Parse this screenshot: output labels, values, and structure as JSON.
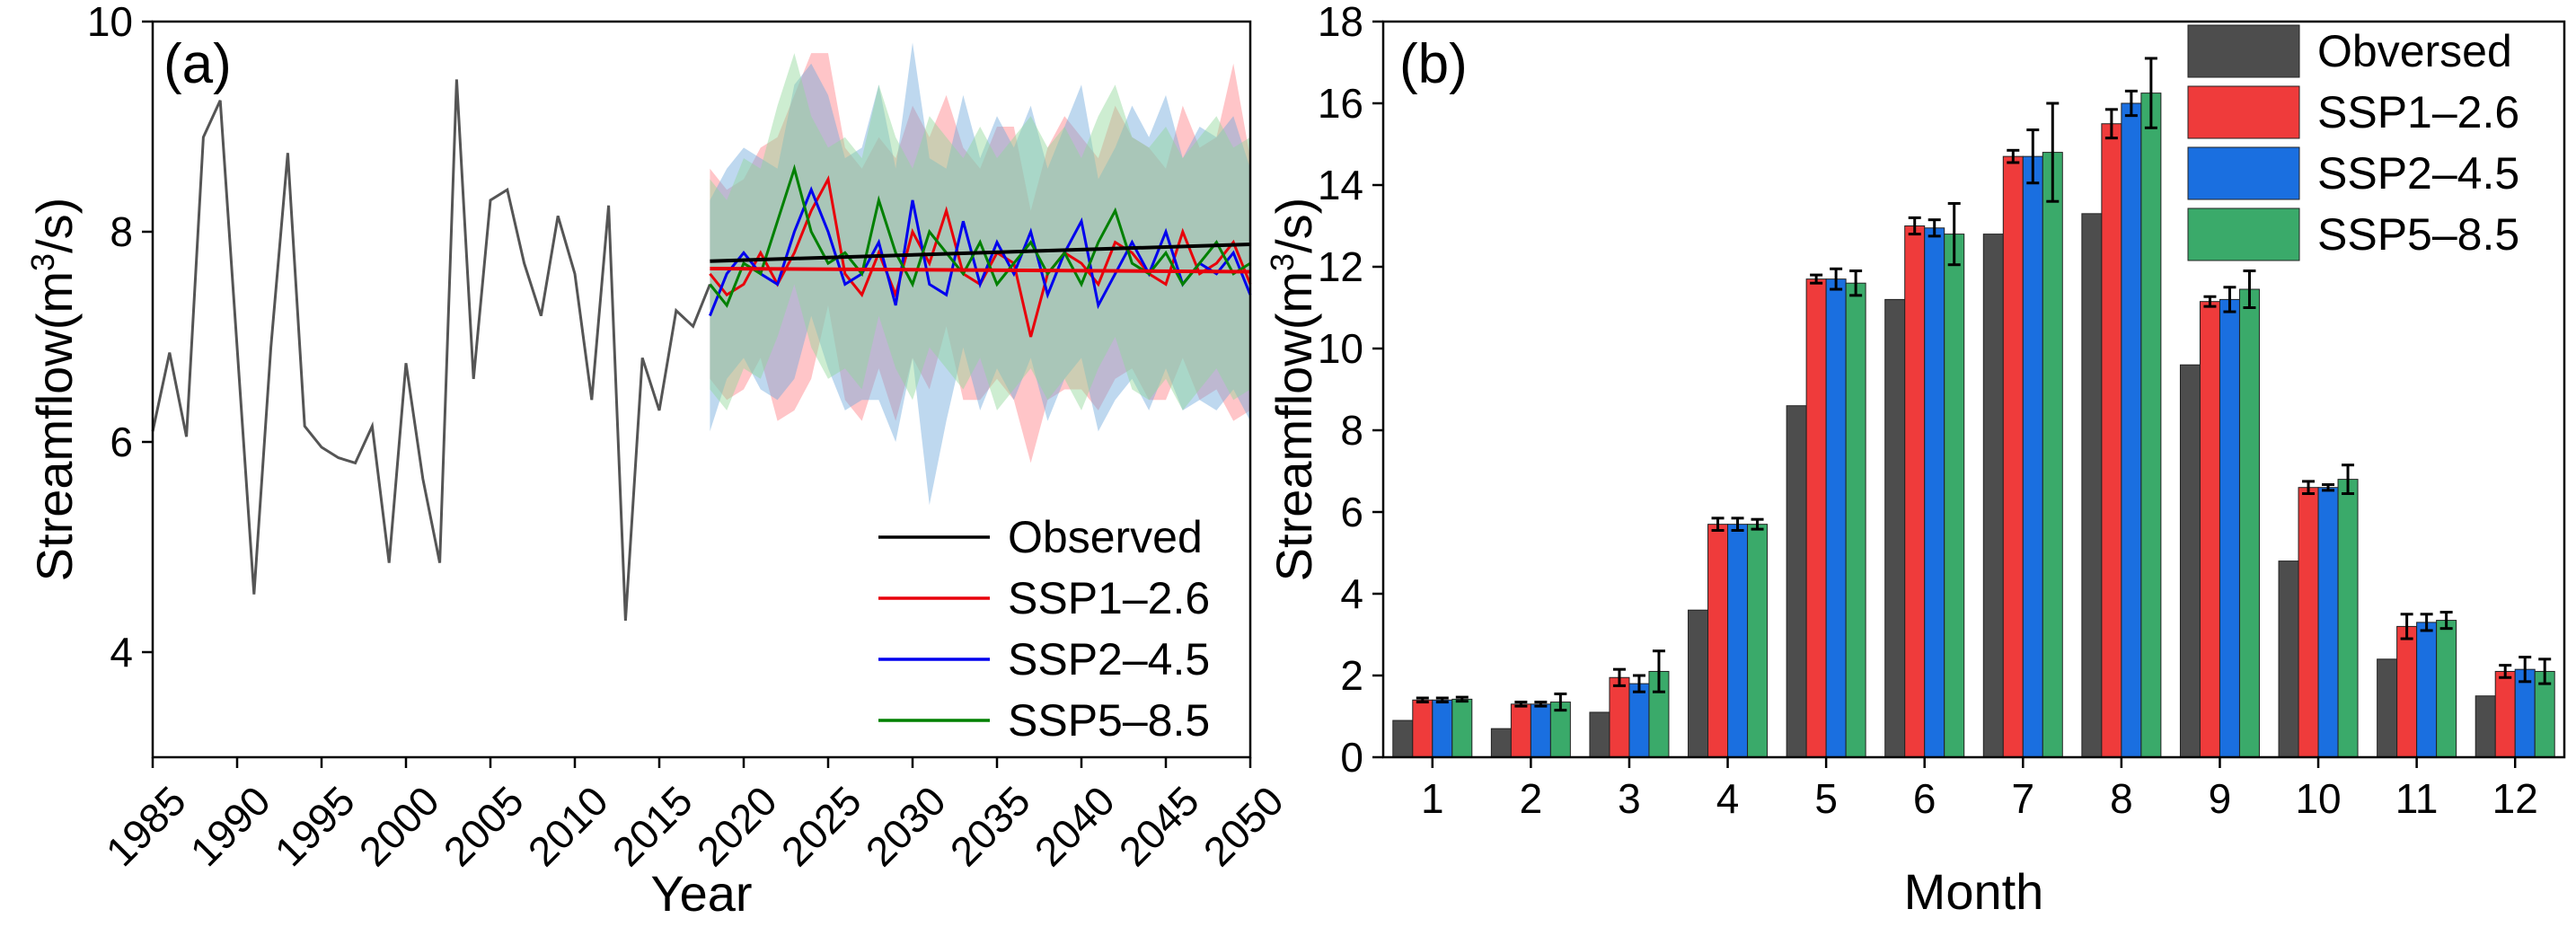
{
  "chart_data": [
    {
      "panel_label": "(a)",
      "type": "line",
      "xlabel": "Year",
      "ylabel": "Streamflow(m³/s)",
      "xlim": [
        1985,
        2050
      ],
      "ylim": [
        3,
        10
      ],
      "xticks": [
        1985,
        1990,
        1995,
        2000,
        2005,
        2010,
        2015,
        2020,
        2025,
        2030,
        2035,
        2040,
        2045,
        2050
      ],
      "yticks": [
        4,
        6,
        8,
        10
      ],
      "legend_position": "lower-right",
      "observed": {
        "name": "Observed",
        "color": "#000000",
        "x": [
          1985,
          1986,
          1987,
          1988,
          1989,
          1990,
          1991,
          1992,
          1993,
          1994,
          1995,
          1996,
          1997,
          1998,
          1999,
          2000,
          2001,
          2002,
          2003,
          2004,
          2005,
          2006,
          2007,
          2008,
          2009,
          2010,
          2011,
          2012,
          2013,
          2014,
          2015,
          2016,
          2017,
          2018
        ],
        "y": [
          6.1,
          6.85,
          6.05,
          8.9,
          9.25,
          6.9,
          4.55,
          6.9,
          8.75,
          6.15,
          5.95,
          5.85,
          5.8,
          6.15,
          4.85,
          6.75,
          5.65,
          4.85,
          9.45,
          6.6,
          8.3,
          8.4,
          7.7,
          7.2,
          8.15,
          7.6,
          6.4,
          8.25,
          4.3,
          6.8,
          6.3,
          7.25,
          7.1,
          7.5
        ],
        "trend": {
          "x": [
            2018,
            2050
          ],
          "y": [
            7.72,
            7.88
          ]
        }
      },
      "series": [
        {
          "name": "SSP1–2.6",
          "color": "#e8000b",
          "band_color": "#ff7f86",
          "x": [
            2018,
            2019,
            2020,
            2021,
            2022,
            2023,
            2024,
            2025,
            2026,
            2027,
            2028,
            2029,
            2030,
            2031,
            2032,
            2033,
            2034,
            2035,
            2036,
            2037,
            2038,
            2039,
            2040,
            2041,
            2042,
            2043,
            2044,
            2045,
            2046,
            2047,
            2048,
            2049,
            2050
          ],
          "y": [
            7.6,
            7.4,
            7.5,
            7.8,
            7.5,
            7.8,
            8.2,
            8.5,
            7.6,
            7.4,
            7.8,
            7.4,
            8.0,
            7.7,
            8.2,
            7.6,
            7.5,
            7.8,
            7.7,
            7.0,
            7.6,
            7.8,
            7.7,
            7.5,
            7.9,
            7.8,
            7.6,
            7.5,
            8.0,
            7.6,
            7.7,
            7.9,
            7.5
          ],
          "upper": [
            8.6,
            8.4,
            8.5,
            8.8,
            8.9,
            9.3,
            9.7,
            9.7,
            8.8,
            8.6,
            8.9,
            8.7,
            9.2,
            8.9,
            9.3,
            8.8,
            8.6,
            9.0,
            9.0,
            8.2,
            8.8,
            9.1,
            8.9,
            8.7,
            9.2,
            8.9,
            8.8,
            8.6,
            9.2,
            8.8,
            8.9,
            9.6,
            8.7
          ],
          "lower": [
            6.6,
            6.4,
            6.5,
            6.8,
            6.2,
            6.3,
            6.6,
            7.3,
            6.4,
            6.2,
            6.7,
            6.2,
            6.8,
            6.5,
            7.1,
            6.4,
            6.4,
            6.6,
            6.4,
            5.8,
            6.4,
            6.5,
            6.5,
            6.3,
            6.6,
            6.7,
            6.4,
            6.4,
            6.8,
            6.4,
            6.5,
            6.2,
            6.3
          ],
          "trend": {
            "x": [
              2018,
              2050
            ],
            "y": [
              7.65,
              7.62
            ]
          }
        },
        {
          "name": "SSP2–4.5",
          "color": "#0000ee",
          "band_color": "#6fa8dc",
          "x": [
            2018,
            2019,
            2020,
            2021,
            2022,
            2023,
            2024,
            2025,
            2026,
            2027,
            2028,
            2029,
            2030,
            2031,
            2032,
            2033,
            2034,
            2035,
            2036,
            2037,
            2038,
            2039,
            2040,
            2041,
            2042,
            2043,
            2044,
            2045,
            2046,
            2047,
            2048,
            2049,
            2050
          ],
          "y": [
            7.2,
            7.6,
            7.8,
            7.6,
            7.5,
            8.0,
            8.4,
            8.0,
            7.5,
            7.6,
            7.9,
            7.3,
            8.3,
            7.5,
            7.4,
            8.1,
            7.5,
            7.9,
            7.6,
            8.0,
            7.4,
            7.8,
            8.1,
            7.3,
            7.6,
            7.9,
            7.6,
            8.0,
            7.5,
            7.7,
            7.6,
            7.8,
            7.4
          ],
          "upper": [
            8.3,
            8.6,
            8.8,
            8.7,
            8.6,
            9.4,
            9.6,
            9.3,
            8.7,
            8.8,
            9.4,
            8.6,
            9.8,
            8.7,
            8.6,
            9.3,
            8.7,
            9.1,
            8.8,
            9.2,
            8.6,
            9.0,
            9.4,
            8.5,
            8.8,
            9.2,
            8.9,
            9.3,
            8.7,
            9.0,
            8.9,
            9.1,
            8.6
          ],
          "lower": [
            6.1,
            6.6,
            6.8,
            6.5,
            6.4,
            6.6,
            7.2,
            6.7,
            6.3,
            6.4,
            6.4,
            6.0,
            6.8,
            5.4,
            6.2,
            6.9,
            6.3,
            6.7,
            6.4,
            6.8,
            6.2,
            6.6,
            6.8,
            6.1,
            6.4,
            6.6,
            6.3,
            6.7,
            6.3,
            6.4,
            6.3,
            6.5,
            6.2
          ]
        },
        {
          "name": "SSP5–8.5",
          "color": "#008000",
          "band_color": "#90d89a",
          "x": [
            2018,
            2019,
            2020,
            2021,
            2022,
            2023,
            2024,
            2025,
            2026,
            2027,
            2028,
            2029,
            2030,
            2031,
            2032,
            2033,
            2034,
            2035,
            2036,
            2037,
            2038,
            2039,
            2040,
            2041,
            2042,
            2043,
            2044,
            2045,
            2046,
            2047,
            2048,
            2049,
            2050
          ],
          "y": [
            7.5,
            7.3,
            7.7,
            7.6,
            8.1,
            8.6,
            8.0,
            7.7,
            7.8,
            7.6,
            8.3,
            7.8,
            7.5,
            8.0,
            7.8,
            7.6,
            7.9,
            7.5,
            7.7,
            7.9,
            7.6,
            7.8,
            7.5,
            7.9,
            8.2,
            7.7,
            7.6,
            7.8,
            7.5,
            7.7,
            7.9,
            7.6,
            7.7
          ],
          "upper": [
            8.5,
            8.3,
            8.7,
            8.6,
            9.2,
            9.7,
            9.1,
            8.8,
            8.9,
            8.7,
            9.4,
            8.9,
            8.6,
            9.1,
            8.9,
            8.7,
            9.0,
            8.7,
            8.9,
            9.1,
            8.8,
            9.0,
            8.7,
            9.1,
            9.4,
            8.9,
            8.8,
            9.0,
            8.7,
            8.9,
            9.1,
            8.8,
            8.9
          ],
          "lower": [
            6.5,
            6.3,
            6.7,
            6.6,
            7.0,
            7.5,
            6.9,
            6.6,
            6.7,
            6.5,
            7.2,
            6.7,
            6.4,
            6.9,
            6.7,
            6.5,
            6.8,
            6.3,
            6.5,
            6.7,
            6.4,
            6.6,
            6.3,
            6.7,
            7.0,
            6.5,
            6.4,
            6.6,
            6.3,
            6.5,
            6.7,
            6.4,
            6.5
          ]
        }
      ]
    },
    {
      "panel_label": "(b)",
      "type": "bar",
      "xlabel": "Month",
      "ylabel": "Streamflow(m³/s)",
      "ylim": [
        0,
        18
      ],
      "yticks": [
        0,
        2,
        4,
        6,
        8,
        10,
        12,
        14,
        16,
        18
      ],
      "categories": [
        "1",
        "2",
        "3",
        "4",
        "5",
        "6",
        "7",
        "8",
        "9",
        "10",
        "11",
        "12"
      ],
      "legend_position": "top-right",
      "series": [
        {
          "name": "Obversed",
          "color": "#4d4d4d",
          "values": [
            0.9,
            0.7,
            1.1,
            3.6,
            8.6,
            11.2,
            12.8,
            13.3,
            9.6,
            4.8,
            2.4,
            1.5
          ],
          "errors": [
            0,
            0,
            0,
            0,
            0,
            0,
            0,
            0,
            0,
            0,
            0,
            0
          ]
        },
        {
          "name": "SSP1–2.6",
          "color": "#ef3b3b",
          "values": [
            1.4,
            1.3,
            1.95,
            5.7,
            11.7,
            13.0,
            14.7,
            15.5,
            11.15,
            6.6,
            3.2,
            2.1
          ],
          "errors": [
            0.05,
            0.05,
            0.2,
            0.15,
            0.1,
            0.2,
            0.15,
            0.35,
            0.12,
            0.15,
            0.3,
            0.15
          ]
        },
        {
          "name": "SSP2–4.5",
          "color": "#1a6fe0",
          "values": [
            1.4,
            1.3,
            1.8,
            5.7,
            11.7,
            12.95,
            14.7,
            16.0,
            11.2,
            6.6,
            3.3,
            2.15
          ],
          "errors": [
            0.05,
            0.05,
            0.2,
            0.15,
            0.25,
            0.2,
            0.65,
            0.3,
            0.3,
            0.07,
            0.2,
            0.3
          ]
        },
        {
          "name": "SSP5–8.5",
          "color": "#3aaa6a",
          "values": [
            1.42,
            1.35,
            2.1,
            5.7,
            11.6,
            12.8,
            14.8,
            16.25,
            11.45,
            6.8,
            3.35,
            2.1
          ],
          "errors": [
            0.05,
            0.2,
            0.5,
            0.12,
            0.3,
            0.75,
            1.2,
            0.85,
            0.45,
            0.35,
            0.2,
            0.3
          ]
        }
      ]
    }
  ]
}
